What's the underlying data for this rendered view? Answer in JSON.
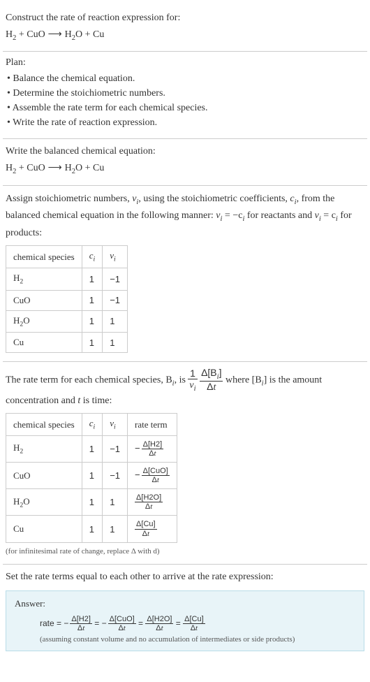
{
  "intro": {
    "prompt": "Construct the rate of reaction expression for:",
    "equation_lhs_1": "H",
    "equation_lhs_1_sub": "2",
    "plus": " + ",
    "equation_lhs_2": "CuO",
    "arrow": " ⟶ ",
    "equation_rhs_1": "H",
    "equation_rhs_1_sub": "2",
    "equation_rhs_1_suffix": "O",
    "equation_rhs_2": "Cu"
  },
  "plan": {
    "header": "Plan:",
    "items": [
      "• Balance the chemical equation.",
      "• Determine the stoichiometric numbers.",
      "• Assemble the rate term for each chemical species.",
      "• Write the rate of reaction expression."
    ]
  },
  "balanced": {
    "header": "Write the balanced chemical equation:"
  },
  "assign": {
    "text_1": "Assign stoichiometric numbers, ",
    "nu": "ν",
    "sub_i": "i",
    "text_2": ", using the stoichiometric coefficients, ",
    "c": "c",
    "text_3": ", from the balanced chemical equation in the following manner: ",
    "eq1_lhs": "ν",
    "eq1_rhs": " = −c",
    "text_4": " for reactants and ",
    "eq2_rhs": " = c",
    "text_5": " for products:",
    "table": {
      "headers": [
        "chemical species",
        "c",
        "ν"
      ],
      "hsub": "i",
      "rows": [
        {
          "sp": "H",
          "sp_sub": "2",
          "sp_suffix": "",
          "c": "1",
          "v": "−1"
        },
        {
          "sp": "CuO",
          "sp_sub": "",
          "sp_suffix": "",
          "c": "1",
          "v": "−1"
        },
        {
          "sp": "H",
          "sp_sub": "2",
          "sp_suffix": "O",
          "c": "1",
          "v": "1"
        },
        {
          "sp": "Cu",
          "sp_sub": "",
          "sp_suffix": "",
          "c": "1",
          "v": "1"
        }
      ]
    }
  },
  "rateterm": {
    "text_1": "The rate term for each chemical species, B",
    "text_2": ", is ",
    "frac1_num": "1",
    "frac1_den_sym": "ν",
    "frac2_num_a": "Δ[B",
    "frac2_num_b": "]",
    "frac2_den_a": "Δ",
    "frac2_den_t": "t",
    "text_3": " where [B",
    "text_4": "] is the amount concentration and ",
    "t": "t",
    "text_5": " is time:",
    "table": {
      "headers": [
        "chemical species",
        "c",
        "ν",
        "rate term"
      ],
      "hsub": "i",
      "rows": [
        {
          "sp": "H",
          "sp_sub": "2",
          "sp_suffix": "",
          "c": "1",
          "v": "−1",
          "neg": true,
          "num": "Δ[H2]",
          "den": "Δt"
        },
        {
          "sp": "CuO",
          "sp_sub": "",
          "sp_suffix": "",
          "c": "1",
          "v": "−1",
          "neg": true,
          "num": "Δ[CuO]",
          "den": "Δt"
        },
        {
          "sp": "H",
          "sp_sub": "2",
          "sp_suffix": "O",
          "c": "1",
          "v": "1",
          "neg": false,
          "num": "Δ[H2O]",
          "den": "Δt"
        },
        {
          "sp": "Cu",
          "sp_sub": "",
          "sp_suffix": "",
          "c": "1",
          "v": "1",
          "neg": false,
          "num": "Δ[Cu]",
          "den": "Δt"
        }
      ]
    },
    "note": "(for infinitesimal rate of change, replace Δ with d)"
  },
  "final": {
    "header": "Set the rate terms equal to each other to arrive at the rate expression:",
    "answer_label": "Answer:",
    "rate_label": "rate = ",
    "terms": [
      {
        "neg": true,
        "num": "Δ[H2]",
        "den": "Δt"
      },
      {
        "neg": true,
        "num": "Δ[CuO]",
        "den": "Δt"
      },
      {
        "neg": false,
        "num": "Δ[H2O]",
        "den": "Δt"
      },
      {
        "neg": false,
        "num": "Δ[Cu]",
        "den": "Δt"
      }
    ],
    "eq": " = ",
    "note": "(assuming constant volume and no accumulation of intermediates or side products)"
  }
}
